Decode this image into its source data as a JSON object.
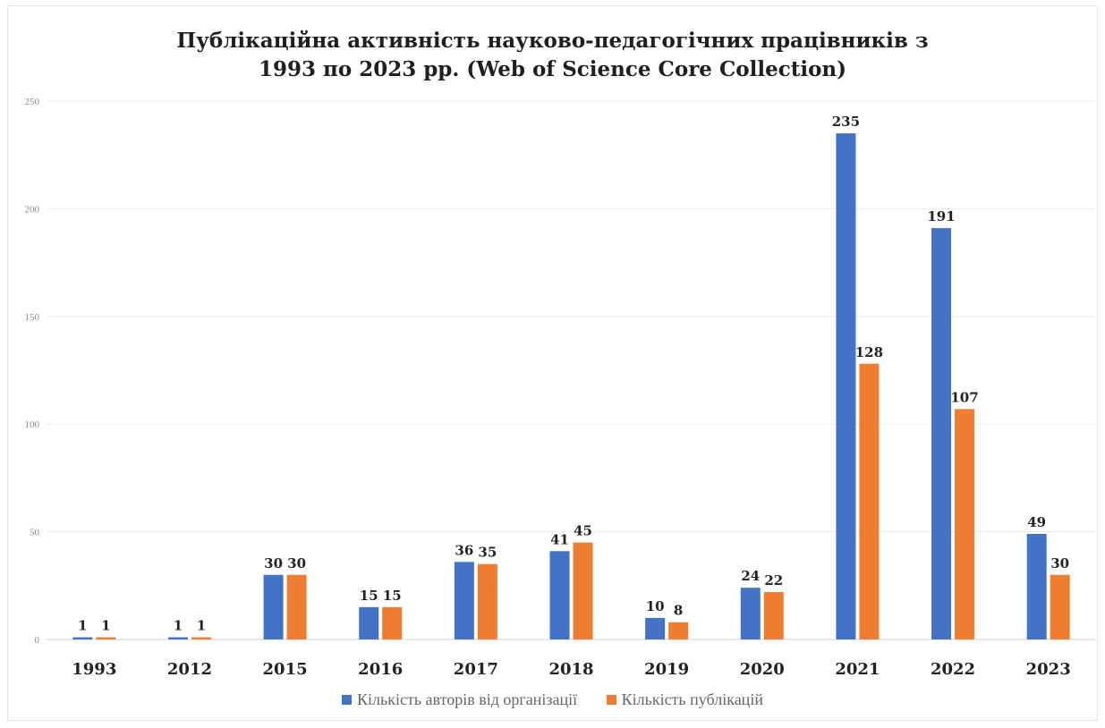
{
  "chart_data": {
    "type": "bar",
    "title_lines": [
      "Публікаційна активність науково-педагогічних працівників з",
      "1993 по 2023 рр. (Web of Science Core Collection)"
    ],
    "categories": [
      "1993",
      "2012",
      "2015",
      "2016",
      "2017",
      "2018",
      "2019",
      "2020",
      "2021",
      "2022",
      "2023"
    ],
    "series": [
      {
        "name": "Кількість авторів від організації",
        "color": "#4472c4",
        "values": [
          1,
          1,
          30,
          15,
          36,
          41,
          10,
          24,
          235,
          191,
          49
        ]
      },
      {
        "name": "Кількість публікацій",
        "color": "#ed7d31",
        "values": [
          1,
          1,
          30,
          15,
          35,
          45,
          8,
          22,
          128,
          107,
          30
        ]
      }
    ],
    "ylim": [
      0,
      250
    ],
    "yticks": [
      0,
      50,
      100,
      150,
      200,
      250
    ],
    "grid": true,
    "legend_position": "bottom",
    "data_labels": true
  }
}
